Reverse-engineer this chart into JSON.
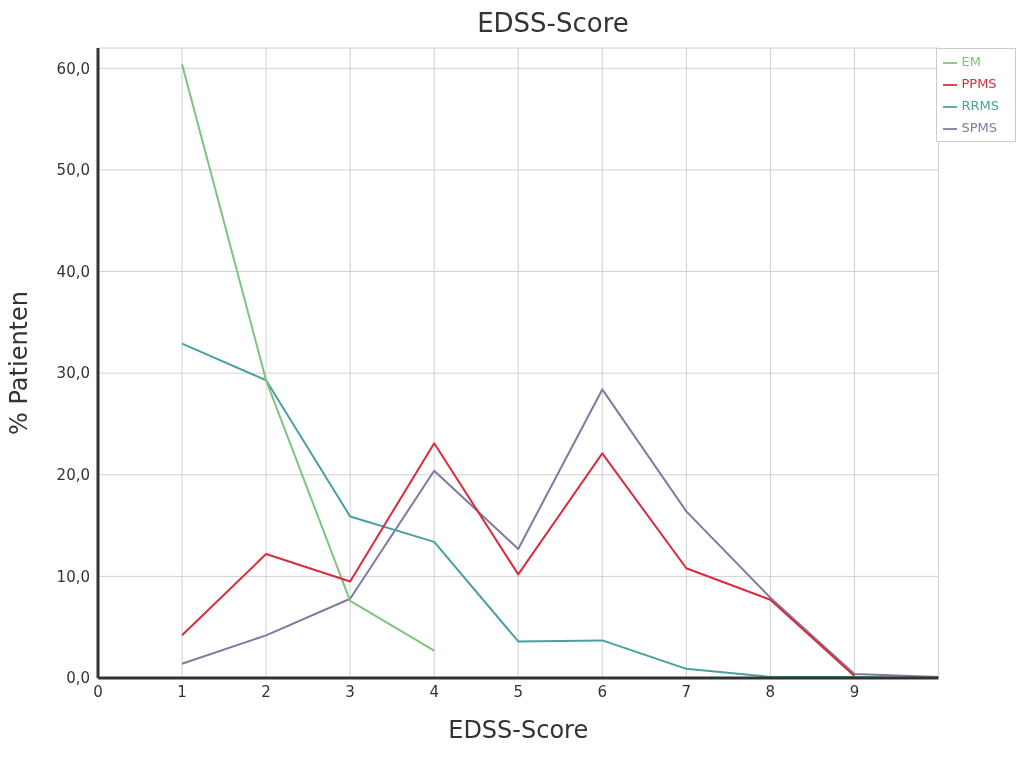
{
  "chart_data": {
    "type": "line",
    "title": "EDSS-Score",
    "xlabel": "EDSS-Score",
    "ylabel": "% Patienten",
    "x": [
      1,
      2,
      3,
      4,
      5,
      6,
      7,
      8,
      9,
      10
    ],
    "series": [
      {
        "name": "SPMS",
        "color": "#8079a0",
        "values": [
          1.4,
          4.2,
          7.8,
          20.4,
          12.7,
          28.4,
          16.4,
          7.9,
          0.4,
          0.1
        ]
      },
      {
        "name": "RRMS",
        "color": "#4aa0a0",
        "values": [
          32.9,
          29.3,
          15.9,
          13.4,
          3.6,
          3.7,
          0.9,
          0.1,
          0.1,
          0.0
        ]
      },
      {
        "name": "EM",
        "color": "#7fc47f",
        "values": [
          60.4,
          29.3,
          7.6,
          2.7,
          null,
          null,
          null,
          null,
          null,
          null
        ]
      },
      {
        "name": "PPMS",
        "color": "#d62d3c",
        "values": [
          4.2,
          12.2,
          9.5,
          23.1,
          10.2,
          22.1,
          10.8,
          7.7,
          0.2,
          null
        ]
      }
    ],
    "xlim": [
      0,
      10
    ],
    "xticks": [
      0,
      1,
      2,
      3,
      4,
      5,
      6,
      7,
      8,
      9
    ],
    "ylim": [
      0,
      62
    ],
    "yticks": [
      {
        "value": 0,
        "label": "0,0"
      },
      {
        "value": 10,
        "label": "10,0"
      },
      {
        "value": 20,
        "label": "20,0"
      },
      {
        "value": 30,
        "label": "30,0"
      },
      {
        "value": 40,
        "label": "40,0"
      },
      {
        "value": 50,
        "label": "50,0"
      },
      {
        "value": 60,
        "label": "60,0"
      }
    ],
    "grid": true,
    "legend": "top right",
    "marker": "none",
    "line_style": "solid"
  }
}
